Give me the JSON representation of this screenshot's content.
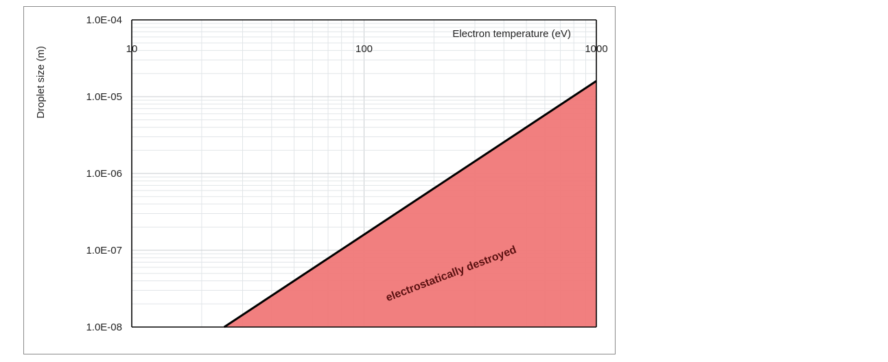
{
  "chart_data": {
    "type": "area",
    "title": "",
    "xlabel": "Electron temperature (eV)",
    "ylabel": "Droplet size (m)",
    "x_scale": "log",
    "y_scale": "log",
    "xlim": [
      10,
      1000
    ],
    "ylim": [
      1e-08,
      0.0001
    ],
    "x_ticks": [
      10,
      100,
      1000
    ],
    "x_tick_labels": [
      "10",
      "100",
      "1000"
    ],
    "y_ticks": [
      0.0001,
      1e-05,
      1e-06,
      1e-07,
      1e-08
    ],
    "y_tick_labels": [
      "1.0E-04",
      "1.0E-05",
      "1.0E-06",
      "1.0E-07",
      "1.0E-08"
    ],
    "grid": true,
    "x_axis_position": "top",
    "series": [
      {
        "x": [
          25,
          1000
        ],
        "y": [
          1e-08,
          1.6e-05
        ]
      }
    ],
    "annotations": [
      {
        "text": "electrostatically destroyed",
        "x": 240,
        "y": 4.5e-08
      }
    ],
    "colors": {
      "fill": "#f07878",
      "line": "#000000",
      "grid_major": "#c8ccd0",
      "grid_minor": "#e1e5e8",
      "annotation": "#5a1010"
    }
  }
}
